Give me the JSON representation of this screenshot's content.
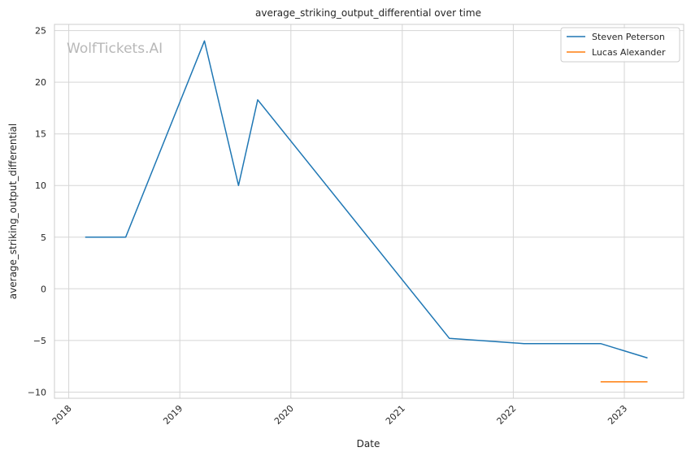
{
  "chart_data": {
    "type": "line",
    "title": "average_striking_output_differential over time",
    "xlabel": "Date",
    "ylabel": "average_striking_output_differential",
    "watermark": "WolfTickets.AI",
    "xlim": [
      "2017-11-15",
      "2023-07-15"
    ],
    "ylim": [
      -10.6,
      25.6
    ],
    "x_ticks": [
      "2018",
      "2019",
      "2020",
      "2021",
      "2022",
      "2023"
    ],
    "x_tick_dates": [
      "2018-01-01",
      "2019-01-01",
      "2020-01-01",
      "2021-01-01",
      "2022-01-01",
      "2023-01-01"
    ],
    "y_ticks": [
      -10,
      -5,
      0,
      5,
      10,
      15,
      20,
      25
    ],
    "grid": true,
    "legend_position": "top-right",
    "series": [
      {
        "name": "Steven Peterson",
        "color": "#1f77b4",
        "points": [
          {
            "x": "2018-02-24",
            "y": 5.0
          },
          {
            "x": "2018-07-07",
            "y": 5.0
          },
          {
            "x": "2019-03-23",
            "y": 24.0
          },
          {
            "x": "2019-07-13",
            "y": 10.0
          },
          {
            "x": "2019-09-14",
            "y": 18.3
          },
          {
            "x": "2021-06-05",
            "y": -4.8
          },
          {
            "x": "2022-02-05",
            "y": -5.3
          },
          {
            "x": "2022-10-15",
            "y": -5.3
          },
          {
            "x": "2023-03-18",
            "y": -6.7
          }
        ]
      },
      {
        "name": "Lucas Alexander",
        "color": "#ff7f0e",
        "points": [
          {
            "x": "2022-10-15",
            "y": -9.0
          },
          {
            "x": "2023-03-18",
            "y": -9.0
          }
        ]
      }
    ]
  }
}
